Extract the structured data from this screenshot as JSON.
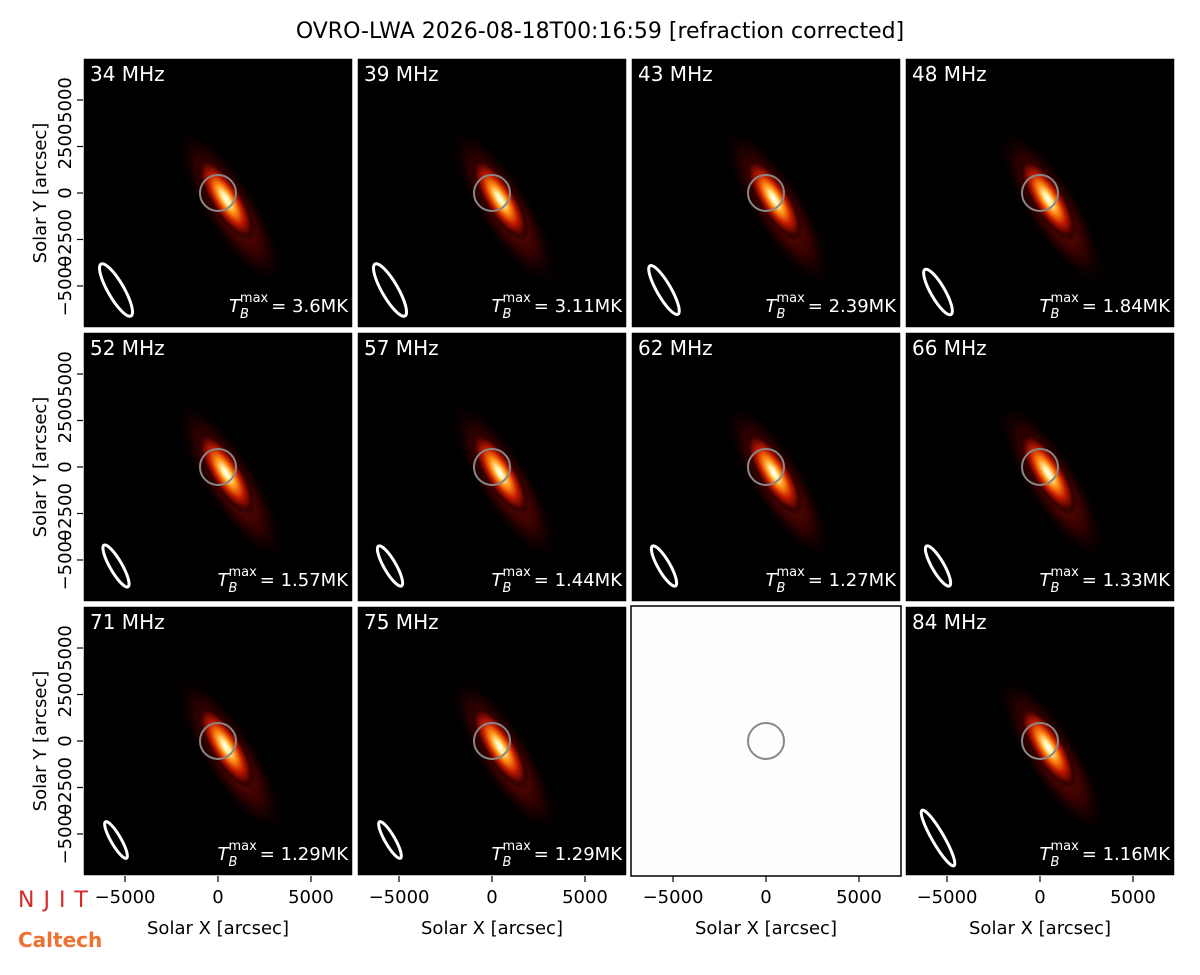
{
  "title": "OVRO-LWA 2026-08-18T00:16:59 [refraction corrected]",
  "axes": {
    "xlabel": "Solar X [arcsec]",
    "ylabel": "Solar Y [arcsec]",
    "xlim": [
      -7260,
      7260
    ],
    "ylim": [
      -7260,
      7260
    ],
    "xticks": [
      {
        "value": -5000,
        "label": "−5000"
      },
      0,
      5000
    ],
    "yticks": [
      {
        "value": -5000,
        "label": "−5000"
      },
      {
        "value": -2500,
        "label": "−2500"
      },
      0,
      2500,
      5000
    ]
  },
  "annotation_symbol": {
    "base": "T",
    "sub": "B",
    "sup": "max"
  },
  "logos": [
    "NJIT",
    "Caltech"
  ],
  "chart_data": [
    {
      "type": "image",
      "colormap": "hot",
      "label": "34 MHz",
      "annotation": "= 3.6MK"
    },
    {
      "type": "image",
      "colormap": "hot",
      "label": "39 MHz",
      "annotation": "= 3.11MK"
    },
    {
      "type": "image",
      "colormap": "hot",
      "label": "43 MHz",
      "annotation": "= 2.39MK"
    },
    {
      "type": "image",
      "colormap": "hot",
      "label": "48 MHz",
      "annotation": "= 1.84MK"
    },
    {
      "type": "image",
      "colormap": "hot",
      "label": "52 MHz",
      "annotation": "= 1.57MK"
    },
    {
      "type": "image",
      "colormap": "hot",
      "label": "57 MHz",
      "annotation": "= 1.44MK"
    },
    {
      "type": "image",
      "colormap": "hot",
      "label": "62 MHz",
      "annotation": "= 1.27MK"
    },
    {
      "type": "image",
      "colormap": "hot",
      "label": "66 MHz",
      "annotation": "= 1.33MK"
    },
    {
      "type": "image",
      "colormap": "hot",
      "label": "71 MHz",
      "annotation": "= 1.29MK"
    },
    {
      "type": "image",
      "colormap": "hot",
      "label": "75 MHz",
      "annotation": "= 1.29MK"
    },
    {
      "type": "image",
      "colormap": "blank"
    },
    {
      "type": "image",
      "colormap": "hot",
      "label": "84 MHz",
      "annotation": "= 1.16MK"
    }
  ]
}
